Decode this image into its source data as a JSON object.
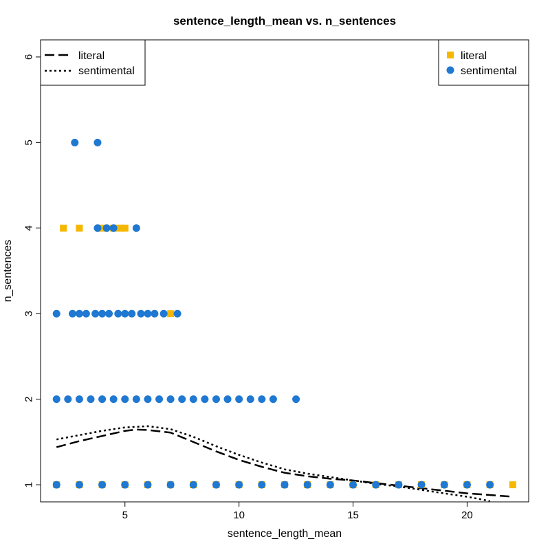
{
  "chart_data": {
    "type": "scatter",
    "title": "sentence_length_mean vs. n_sentences",
    "xlabel": "sentence_length_mean",
    "ylabel": "n_sentences",
    "xlim": [
      1.3,
      22.7
    ],
    "ylim": [
      0.8,
      6.2
    ],
    "xticks": [
      5,
      10,
      15,
      20
    ],
    "yticks": [
      1,
      2,
      3,
      4,
      5,
      6
    ],
    "grid": false,
    "colors": {
      "literal": "#f5b800",
      "sentimental": "#1f78d1",
      "curve": "#000000"
    },
    "series": [
      {
        "name": "literal",
        "marker": "square",
        "points": [
          [
            2,
            1
          ],
          [
            3,
            1
          ],
          [
            4,
            1
          ],
          [
            5,
            1
          ],
          [
            6,
            1
          ],
          [
            7,
            1
          ],
          [
            8,
            1
          ],
          [
            9,
            1
          ],
          [
            10,
            1
          ],
          [
            11,
            1
          ],
          [
            12,
            1
          ],
          [
            13,
            1
          ],
          [
            14,
            1
          ],
          [
            15,
            1
          ],
          [
            16,
            1
          ],
          [
            17,
            1
          ],
          [
            18,
            1
          ],
          [
            19,
            1
          ],
          [
            20,
            1
          ],
          [
            21,
            1
          ],
          [
            22,
            1
          ],
          [
            7,
            3
          ],
          [
            2.3,
            4
          ],
          [
            3,
            4
          ],
          [
            4,
            4
          ],
          [
            4.5,
            4
          ],
          [
            4.8,
            4
          ],
          [
            5,
            4
          ]
        ]
      },
      {
        "name": "sentimental",
        "marker": "circle",
        "points": [
          [
            2,
            1
          ],
          [
            3,
            1
          ],
          [
            4,
            1
          ],
          [
            5,
            1
          ],
          [
            6,
            1
          ],
          [
            7,
            1
          ],
          [
            8,
            1
          ],
          [
            9,
            1
          ],
          [
            10,
            1
          ],
          [
            11,
            1
          ],
          [
            12,
            1
          ],
          [
            13,
            1
          ],
          [
            14,
            1
          ],
          [
            15,
            1
          ],
          [
            16,
            1
          ],
          [
            17,
            1
          ],
          [
            18,
            1
          ],
          [
            19,
            1
          ],
          [
            20,
            1
          ],
          [
            21,
            1
          ],
          [
            2,
            2
          ],
          [
            2.5,
            2
          ],
          [
            3,
            2
          ],
          [
            3.5,
            2
          ],
          [
            4,
            2
          ],
          [
            4.5,
            2
          ],
          [
            5,
            2
          ],
          [
            5.5,
            2
          ],
          [
            6,
            2
          ],
          [
            6.5,
            2
          ],
          [
            7,
            2
          ],
          [
            7.5,
            2
          ],
          [
            8,
            2
          ],
          [
            8.5,
            2
          ],
          [
            9,
            2
          ],
          [
            9.5,
            2
          ],
          [
            10,
            2
          ],
          [
            10.5,
            2
          ],
          [
            11,
            2
          ],
          [
            11.5,
            2
          ],
          [
            12.5,
            2
          ],
          [
            2,
            3
          ],
          [
            2.7,
            3
          ],
          [
            3,
            3
          ],
          [
            3.3,
            3
          ],
          [
            3.7,
            3
          ],
          [
            4,
            3
          ],
          [
            4.3,
            3
          ],
          [
            4.7,
            3
          ],
          [
            5,
            3
          ],
          [
            5.3,
            3
          ],
          [
            5.7,
            3
          ],
          [
            6,
            3
          ],
          [
            6.3,
            3
          ],
          [
            6.7,
            3
          ],
          [
            7.3,
            3
          ],
          [
            3.8,
            4
          ],
          [
            4.2,
            4
          ],
          [
            4.5,
            4
          ],
          [
            5.5,
            4
          ],
          [
            2.8,
            5
          ],
          [
            3.8,
            5
          ]
        ]
      }
    ],
    "curves": [
      {
        "name": "literal",
        "dash": "long-dash",
        "points": [
          [
            2,
            1.44
          ],
          [
            3,
            1.51
          ],
          [
            4,
            1.57
          ],
          [
            5,
            1.63
          ],
          [
            5.5,
            1.645
          ],
          [
            6,
            1.64
          ],
          [
            7,
            1.61
          ],
          [
            8,
            1.5
          ],
          [
            9,
            1.39
          ],
          [
            10,
            1.29
          ],
          [
            11,
            1.21
          ],
          [
            12,
            1.14
          ],
          [
            13,
            1.1
          ],
          [
            14,
            1.07
          ],
          [
            15,
            1.05
          ],
          [
            16,
            1.02
          ],
          [
            17,
            0.99
          ],
          [
            18,
            0.96
          ],
          [
            19,
            0.93
          ],
          [
            20,
            0.9
          ],
          [
            21,
            0.88
          ],
          [
            22,
            0.86
          ]
        ]
      },
      {
        "name": "sentimental",
        "dash": "dotted",
        "points": [
          [
            2,
            1.53
          ],
          [
            3,
            1.58
          ],
          [
            4,
            1.63
          ],
          [
            5,
            1.67
          ],
          [
            6,
            1.685
          ],
          [
            7,
            1.65
          ],
          [
            8,
            1.56
          ],
          [
            9,
            1.45
          ],
          [
            10,
            1.35
          ],
          [
            11,
            1.26
          ],
          [
            12,
            1.18
          ],
          [
            13,
            1.13
          ],
          [
            14,
            1.09
          ],
          [
            15,
            1.05
          ],
          [
            16,
            1.01
          ],
          [
            17,
            0.98
          ],
          [
            18,
            0.94
          ],
          [
            19,
            0.9
          ],
          [
            20,
            0.86
          ],
          [
            21,
            0.81
          ]
        ]
      }
    ],
    "legends": {
      "lines": {
        "position": "top-left",
        "entries": [
          "literal",
          "sentimental"
        ]
      },
      "points": {
        "position": "top-right",
        "entries": [
          "literal",
          "sentimental"
        ]
      }
    }
  }
}
